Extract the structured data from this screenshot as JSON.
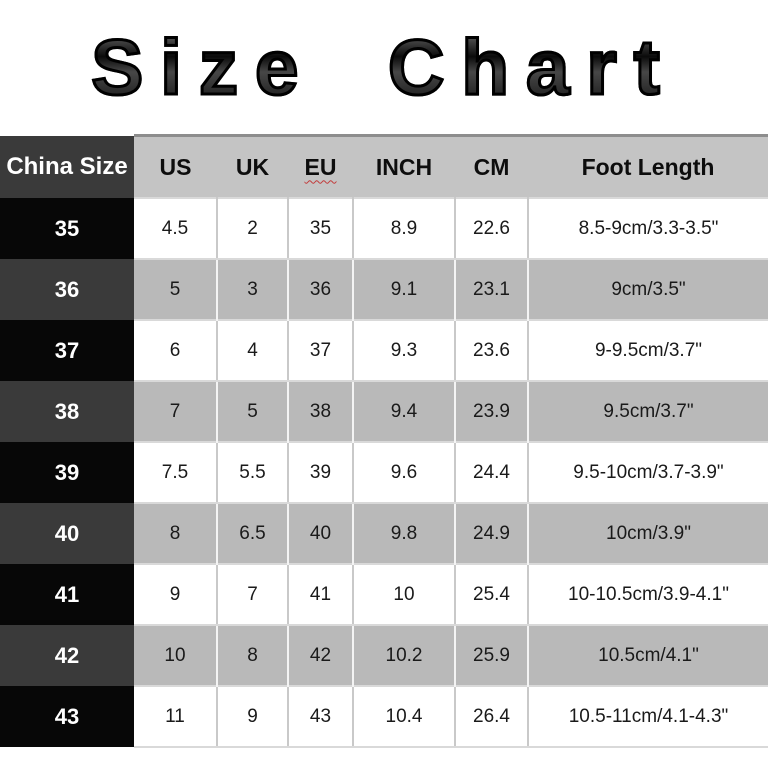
{
  "title": "Size Chart",
  "chart_data": {
    "type": "table",
    "title": "Size Chart",
    "columns": [
      "China Size",
      "US",
      "UK",
      "EU",
      "INCH",
      "CM",
      "Foot Length"
    ],
    "rows": [
      [
        "35",
        "4.5",
        "2",
        "35",
        "8.9",
        "22.6",
        "8.5-9cm/3.3-3.5\""
      ],
      [
        "36",
        "5",
        "3",
        "36",
        "9.1",
        "23.1",
        "9cm/3.5\""
      ],
      [
        "37",
        "6",
        "4",
        "37",
        "9.3",
        "23.6",
        "9-9.5cm/3.7\""
      ],
      [
        "38",
        "7",
        "5",
        "38",
        "9.4",
        "23.9",
        "9.5cm/3.7\""
      ],
      [
        "39",
        "7.5",
        "5.5",
        "39",
        "9.6",
        "24.4",
        "9.5-10cm/3.7-3.9\""
      ],
      [
        "40",
        "8",
        "6.5",
        "40",
        "9.8",
        "24.9",
        "10cm/3.9\""
      ],
      [
        "41",
        "9",
        "7",
        "41",
        "10",
        "25.4",
        "10-10.5cm/3.9-4.1\""
      ],
      [
        "42",
        "10",
        "8",
        "42",
        "10.2",
        "25.9",
        "10.5cm/4.1\""
      ],
      [
        "43",
        "11",
        "9",
        "43",
        "10.4",
        "26.4",
        "10.5-11cm/4.1-4.3\""
      ]
    ]
  },
  "decorations": {
    "spellcheck_underline_header": "EU"
  },
  "colors": {
    "header_dark_bg": "#3a3a3a",
    "header_light_bg": "#c4c4c4",
    "row_black_bg": "#070707",
    "row_dark_bg": "#3a3a3a",
    "row_gray_bg": "#b9b9b9",
    "row_white_bg": "#ffffff",
    "spellcheck_red": "#c23b3b",
    "text_dark": "#1a1a1a",
    "text_light": "#ffffff"
  }
}
